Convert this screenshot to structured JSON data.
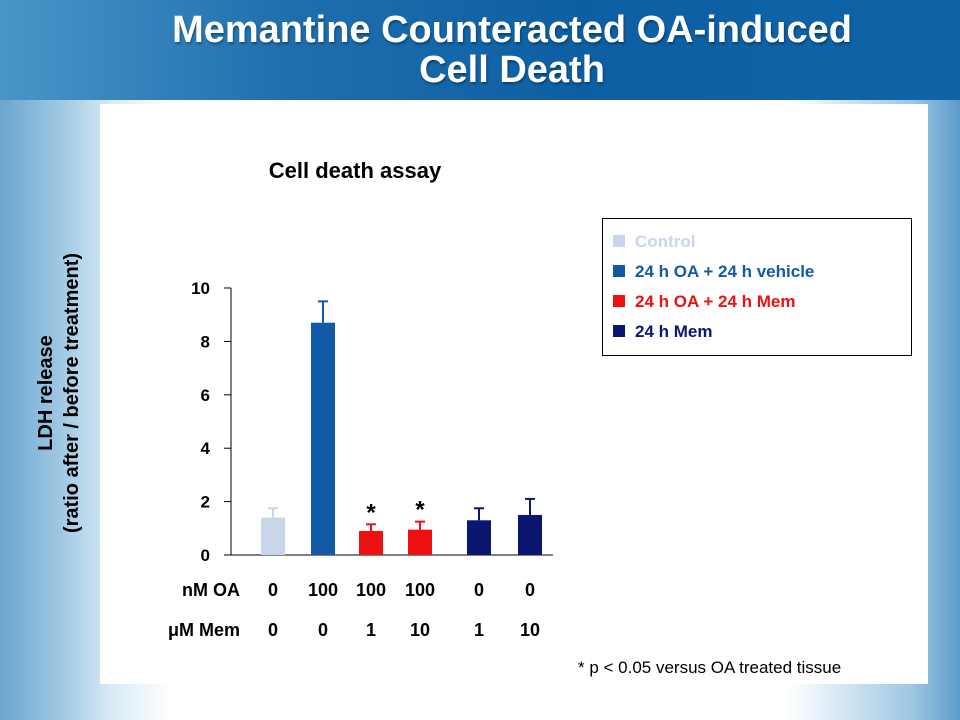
{
  "slide": {
    "title_line1": "Memantine Counteracted OA-induced",
    "title_line2": "Cell Death",
    "footnote": "* p < 0.05 versus OA treated tissue"
  },
  "chart_data": {
    "type": "bar",
    "title": "Cell death assay",
    "ylabel_line1": "LDH release",
    "ylabel_line2": "(ratio after / before treatment)",
    "ylim": [
      0,
      10
    ],
    "yticks": [
      "0",
      "2",
      "4",
      "6",
      "8",
      "10"
    ],
    "ytick_values": [
      0,
      2,
      4,
      6,
      8,
      10
    ],
    "grid": false,
    "legend_position": "right",
    "x_table": [
      {
        "label": "nM OA",
        "values": [
          "0",
          "100",
          "100",
          "100",
          "0",
          "0"
        ]
      },
      {
        "label": "μM Mem",
        "values": [
          "0",
          "0",
          "1",
          "10",
          "1",
          "10"
        ]
      }
    ],
    "bars": [
      {
        "value": 1.4,
        "error": 0.35,
        "series": 0,
        "mark": ""
      },
      {
        "value": 8.7,
        "error": 0.8,
        "series": 1,
        "mark": ""
      },
      {
        "value": 0.9,
        "error": 0.25,
        "series": 2,
        "mark": "*"
      },
      {
        "value": 0.95,
        "error": 0.3,
        "series": 2,
        "mark": "*"
      },
      {
        "value": 1.3,
        "error": 0.45,
        "series": 3,
        "mark": ""
      },
      {
        "value": 1.5,
        "error": 0.6,
        "series": 3,
        "mark": ""
      }
    ],
    "series": [
      {
        "name": "Control",
        "color": "#c9d6ea"
      },
      {
        "name": "24 h OA + 24 h vehicle",
        "color": "#1259a8"
      },
      {
        "name": "24 h OA + 24 h Mem",
        "color": "#ee1111"
      },
      {
        "name": "24 h Mem",
        "color": "#0a1670"
      }
    ]
  }
}
